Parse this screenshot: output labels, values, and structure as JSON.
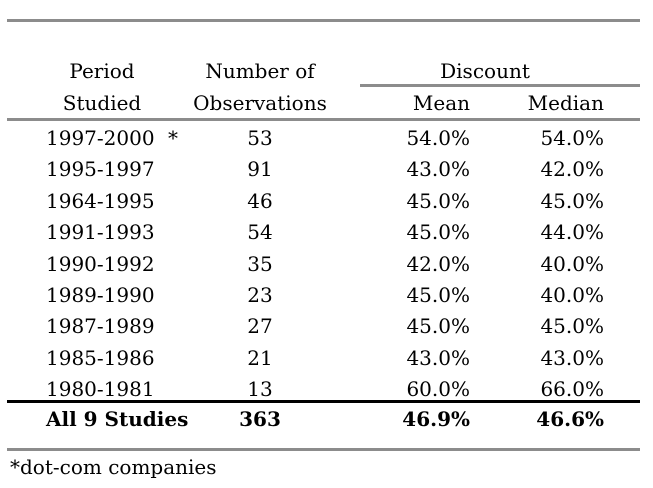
{
  "header": {
    "col1_line1": "Period",
    "col1_line2": "Studied",
    "col2_line1": "Number of",
    "col2_line2": "Observations",
    "group_label": "Discount",
    "col3": "Mean",
    "col4": "Median"
  },
  "rows": [
    {
      "period": "1997-2000",
      "marker": "*",
      "observations": "53",
      "mean": "54.0%",
      "median": "54.0%"
    },
    {
      "period": "1995-1997",
      "marker": "",
      "observations": "91",
      "mean": "43.0%",
      "median": "42.0%"
    },
    {
      "period": "1964-1995",
      "marker": "",
      "observations": "46",
      "mean": "45.0%",
      "median": "45.0%"
    },
    {
      "period": "1991-1993",
      "marker": "",
      "observations": "54",
      "mean": "45.0%",
      "median": "44.0%"
    },
    {
      "period": "1990-1992",
      "marker": "",
      "observations": "35",
      "mean": "42.0%",
      "median": "40.0%"
    },
    {
      "period": "1989-1990",
      "marker": "",
      "observations": "23",
      "mean": "45.0%",
      "median": "40.0%"
    },
    {
      "period": "1987-1989",
      "marker": "",
      "observations": "27",
      "mean": "45.0%",
      "median": "45.0%"
    },
    {
      "period": "1985-1986",
      "marker": "",
      "observations": "21",
      "mean": "43.0%",
      "median": "43.0%"
    },
    {
      "period": "1980-1981",
      "marker": "",
      "observations": "13",
      "mean": "60.0%",
      "median": "66.0%"
    }
  ],
  "total": {
    "label": "All 9 Studies",
    "observations": "363",
    "mean": "46.9%",
    "median": "46.6%"
  },
  "footnote": "*dot-com companies"
}
